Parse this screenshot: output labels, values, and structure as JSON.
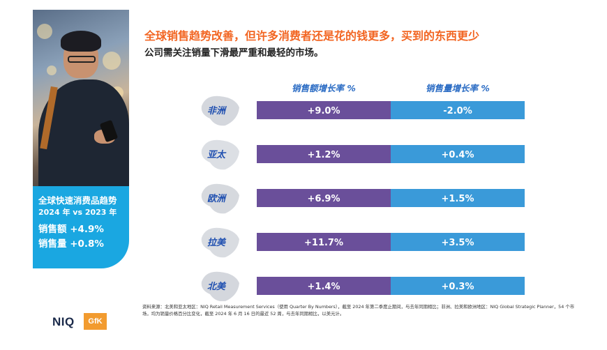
{
  "title": "全球销售趋势改善，但许多消费者还是花的钱更多，买到的东西更少",
  "subtitle": "公司需关注销量下滑最严重和最轻的市场。",
  "sidebar": {
    "line1": "全球快速消费品趋势",
    "line2": "2024 年 vs 2023 年",
    "sales_value": "销售额 +4.9%",
    "sales_volume": "销售量 +0.8%"
  },
  "colors": {
    "accent": "#f26522",
    "value_bar": "#6a4f9a",
    "volume_bar": "#3a9ad9",
    "header_text": "#2b6cc4",
    "sidebar_bg": "#1aa7e1"
  },
  "chart_data": {
    "type": "table",
    "title": "全球销售趋势改善，但许多消费者还是花的钱更多，买到的东西更少",
    "columns": [
      "销售额增长率 %",
      "销售量增长率 %"
    ],
    "categories": [
      "非洲",
      "亚太",
      "欧洲",
      "拉美",
      "北美"
    ],
    "series": [
      {
        "name": "销售额增长率 %",
        "values": [
          9.0,
          1.2,
          6.9,
          11.7,
          1.4
        ],
        "labels": [
          "+9.0%",
          "+1.2%",
          "+6.9%",
          "+11.7%",
          "+1.4%"
        ]
      },
      {
        "name": "销售量增长率 %",
        "values": [
          -2.0,
          0.4,
          1.5,
          3.5,
          0.3
        ],
        "labels": [
          "-2.0%",
          "+0.4%",
          "+1.5%",
          "+3.5%",
          "+0.3%"
        ]
      }
    ]
  },
  "footnote": "资料来源：北美和亚太地区：NIQ Retail Measurement Services（使用 Quarter By Numbers），截至 2024 年第二季度止期间，与去年同期相比；非洲、拉美和欧洲地区：NIQ Global Strategic Planner，54 个市场，均为销量价格百分比变化，截至 2024 年 6 月 16 日的最近 52 周，与去年同期相比，以美元计。",
  "logos": {
    "niq": "NIQ",
    "gfk": "GfK"
  }
}
